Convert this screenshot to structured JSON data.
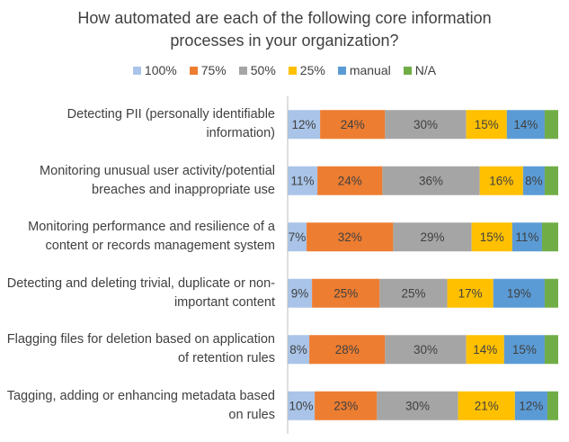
{
  "chart_data": {
    "type": "stacked-bar-horizontal",
    "title": "How automated are each of the following core information processes in your organization?",
    "categories": [
      "Detecting PII (personally identifiable information)",
      "Monitoring unusual user activity/potential breaches and inappropriate use",
      "Monitoring performance and resilience of a content or records management system",
      "Detecting and deleting trivial, duplicate or non-important content",
      "Flagging files for deletion based on application of retention rules",
      "Tagging, adding or enhancing metadata based on rules"
    ],
    "series": [
      {
        "name": "100%",
        "color": "#a9c4e8",
        "values": [
          12,
          11,
          7,
          9,
          8,
          10
        ],
        "value_labels": [
          "12%",
          "11%",
          "7%",
          "9%",
          "8%",
          "10%"
        ]
      },
      {
        "name": "75%",
        "color": "#ed7d31",
        "values": [
          24,
          24,
          32,
          25,
          28,
          23
        ],
        "value_labels": [
          "24%",
          "24%",
          "32%",
          "25%",
          "28%",
          "23%"
        ]
      },
      {
        "name": "50%",
        "color": "#a5a5a5",
        "values": [
          30,
          36,
          29,
          25,
          30,
          30
        ],
        "value_labels": [
          "30%",
          "36%",
          "29%",
          "25%",
          "30%",
          "30%"
        ]
      },
      {
        "name": "25%",
        "color": "#ffc000",
        "values": [
          15,
          16,
          15,
          17,
          14,
          21
        ],
        "value_labels": [
          "15%",
          "16%",
          "15%",
          "17%",
          "14%",
          "21%"
        ]
      },
      {
        "name": "manual",
        "color": "#5b9bd5",
        "values": [
          14,
          8,
          11,
          19,
          15,
          12
        ],
        "value_labels": [
          "14%",
          "8%",
          "11%",
          "19%",
          "15%",
          "12%"
        ]
      },
      {
        "name": "N/A",
        "color": "#70ad47",
        "values": [
          5,
          5,
          6,
          5,
          5,
          4
        ]
      }
    ],
    "xlim": [
      0,
      100
    ]
  }
}
